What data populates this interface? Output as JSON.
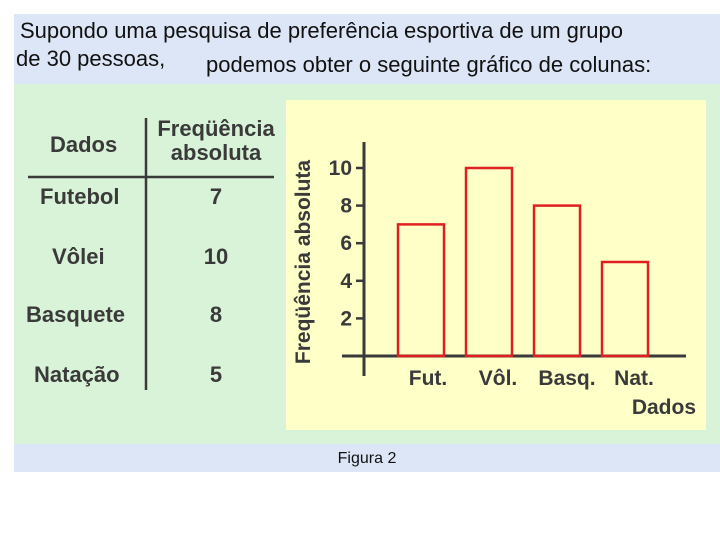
{
  "intro": {
    "line1": "Supondo uma pesquisa de preferência esportiva de um grupo",
    "line2a": "de 30 pessoas,",
    "line2b": "podemos obter o seguinte gráfico de colunas:"
  },
  "table": {
    "header_col1": "Dados",
    "header_col2_line1": "Freqüência",
    "header_col2_line2": "absoluta",
    "rows": [
      {
        "label": "Futebol",
        "value": "7"
      },
      {
        "label": "Vôlei",
        "value": "10"
      },
      {
        "label": "Basquete",
        "value": "8"
      },
      {
        "label": "Natação",
        "value": "5"
      }
    ]
  },
  "caption": "Figura 2",
  "colors": {
    "bar_stroke": "#e02020",
    "chart_bg": "#ffffc8",
    "panel_bg": "#d8f3d8",
    "intro_bg": "#dde6f6"
  },
  "chart_data": {
    "type": "bar",
    "categories": [
      "Fut.",
      "Vôl.",
      "Basq.",
      "Nat."
    ],
    "values": [
      7,
      10,
      8,
      5
    ],
    "ylabel": "Freqüência absoluta",
    "xlabel": "Dados",
    "yticks": [
      2,
      4,
      6,
      8,
      10
    ],
    "ylim": [
      0,
      11
    ],
    "grid": false
  }
}
